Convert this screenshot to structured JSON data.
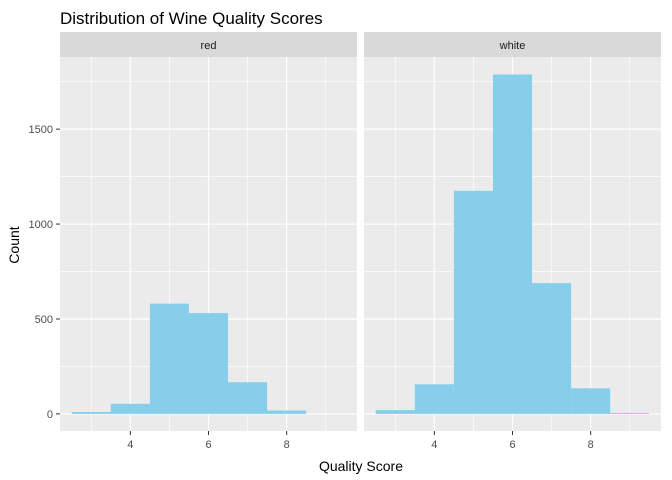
{
  "chart_data": {
    "type": "bar",
    "title": "Distribution of Wine Quality Scores",
    "xlabel": "Quality Score",
    "ylabel": "Count",
    "bar_color": "#87CEEB",
    "panel_background": "#EBEBEB",
    "strip_background": "#D9D9D9",
    "grid_color": "#FFFFFF",
    "grid": true,
    "bin_width": 1,
    "xlim": [
      2.2,
      9.8
    ],
    "ylim": [
      -90,
      1880
    ],
    "x_ticks": [
      4,
      6,
      8
    ],
    "x_tick_labels": [
      "4",
      "6",
      "8"
    ],
    "y_ticks": [
      0,
      500,
      1000,
      1500
    ],
    "y_tick_labels": [
      "0",
      "500",
      "1000",
      "1500"
    ],
    "facets": [
      {
        "label": "red",
        "x": [
          3,
          4,
          5,
          6,
          7,
          8
        ],
        "values": [
          10,
          53,
          581,
          531,
          167,
          18
        ]
      },
      {
        "label": "white",
        "x": [
          3,
          4,
          5,
          6,
          7,
          8,
          9
        ],
        "values": [
          20,
          156,
          1175,
          1788,
          689,
          135,
          5
        ]
      }
    ]
  }
}
